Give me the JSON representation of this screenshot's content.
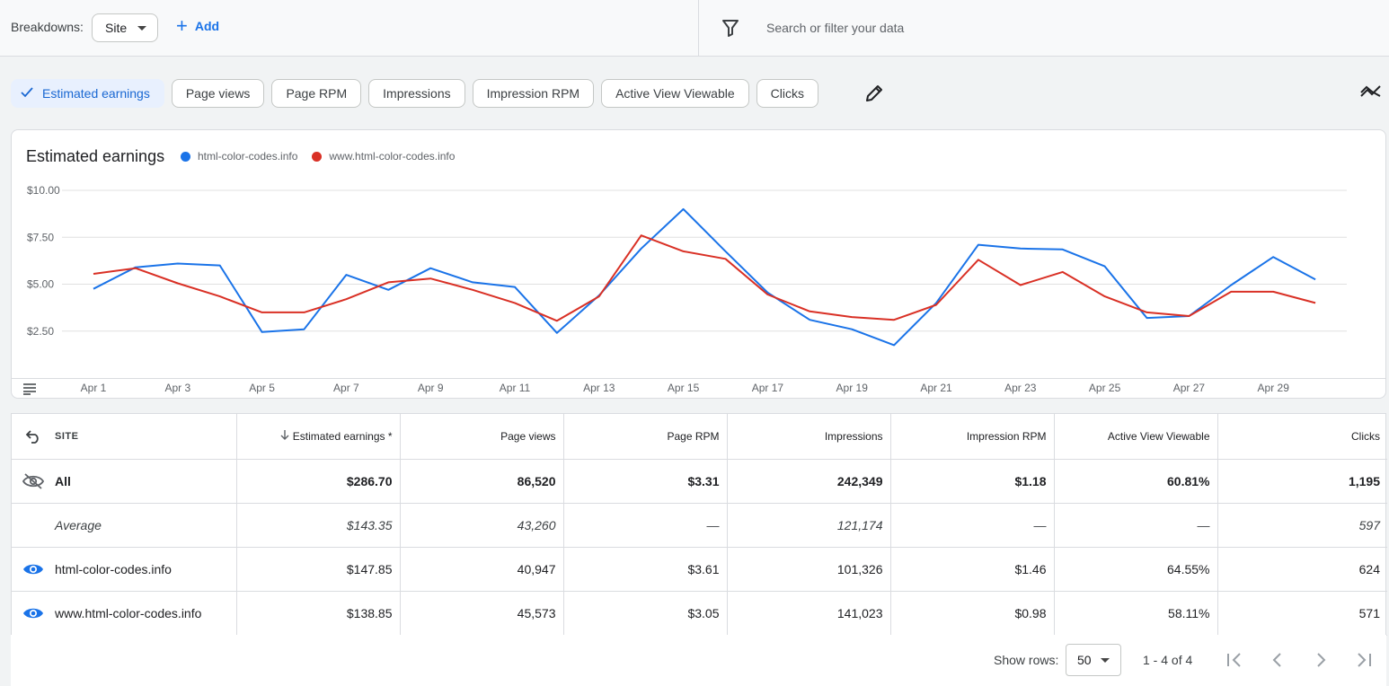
{
  "topbar": {
    "breakdowns_label": "Breakdowns:",
    "breakdown_value": "Site",
    "add_label": "Add",
    "search_placeholder": "Search or filter your data"
  },
  "metric_chips": [
    {
      "label": "Estimated earnings",
      "active": true
    },
    {
      "label": "Page views",
      "active": false
    },
    {
      "label": "Page RPM",
      "active": false
    },
    {
      "label": "Impressions",
      "active": false
    },
    {
      "label": "Impression RPM",
      "active": false
    },
    {
      "label": "Active View Viewable",
      "active": false
    },
    {
      "label": "Clicks",
      "active": false
    }
  ],
  "chart_data": {
    "type": "line",
    "title": "Estimated earnings",
    "x": [
      "Apr 1",
      "Apr 2",
      "Apr 3",
      "Apr 4",
      "Apr 5",
      "Apr 6",
      "Apr 7",
      "Apr 8",
      "Apr 9",
      "Apr 10",
      "Apr 11",
      "Apr 12",
      "Apr 13",
      "Apr 14",
      "Apr 15",
      "Apr 16",
      "Apr 17",
      "Apr 18",
      "Apr 19",
      "Apr 20",
      "Apr 21",
      "Apr 22",
      "Apr 23",
      "Apr 24",
      "Apr 25",
      "Apr 26",
      "Apr 27",
      "Apr 28",
      "Apr 29",
      "Apr 30"
    ],
    "tick_labels": [
      "Apr 1",
      "Apr 3",
      "Apr 5",
      "Apr 7",
      "Apr 9",
      "Apr 11",
      "Apr 13",
      "Apr 15",
      "Apr 17",
      "Apr 19",
      "Apr 21",
      "Apr 23",
      "Apr 25",
      "Apr 27",
      "Apr 29"
    ],
    "y_ticks": [
      "$2.50",
      "$5.00",
      "$7.50",
      "$10.00"
    ],
    "ylim": [
      0,
      10
    ],
    "grid": true,
    "legend_position": "top-left",
    "series": [
      {
        "name": "html-color-codes.info",
        "color": "#1a73e8",
        "values": [
          4.75,
          5.9,
          6.1,
          6.0,
          2.45,
          2.6,
          5.5,
          4.7,
          5.85,
          5.1,
          4.85,
          2.4,
          4.4,
          6.9,
          9.0,
          6.75,
          4.55,
          3.1,
          2.6,
          1.75,
          4.0,
          7.1,
          6.9,
          6.85,
          5.95,
          3.2,
          3.3,
          4.95,
          6.45,
          5.25
        ]
      },
      {
        "name": "www.html-color-codes.info",
        "color": "#d93025",
        "values": [
          5.55,
          5.85,
          5.05,
          4.35,
          3.5,
          3.5,
          4.2,
          5.1,
          5.3,
          4.7,
          4.0,
          3.05,
          4.35,
          7.6,
          6.75,
          6.35,
          4.45,
          3.55,
          3.25,
          3.1,
          3.9,
          6.3,
          4.95,
          5.65,
          4.35,
          3.5,
          3.3,
          4.6,
          4.6,
          4.0
        ]
      }
    ]
  },
  "table": {
    "headers": {
      "site": "SITE",
      "earnings": "Estimated earnings *",
      "page_views": "Page views",
      "page_rpm": "Page RPM",
      "impressions": "Impressions",
      "impression_rpm": "Impression RPM",
      "active_view": "Active View Viewable",
      "clicks": "Clicks"
    },
    "rows": [
      {
        "site": "All",
        "earnings": "$286.70",
        "page_views": "86,520",
        "page_rpm": "$3.31",
        "impressions": "242,349",
        "impression_rpm": "$1.18",
        "active_view": "60.81%",
        "clicks": "1,195"
      },
      {
        "site": "Average",
        "earnings": "$143.35",
        "page_views": "43,260",
        "page_rpm": "—",
        "impressions": "121,174",
        "impression_rpm": "—",
        "active_view": "—",
        "clicks": "597"
      },
      {
        "site": "html-color-codes.info",
        "earnings": "$147.85",
        "page_views": "40,947",
        "page_rpm": "$3.61",
        "impressions": "101,326",
        "impression_rpm": "$1.46",
        "active_view": "64.55%",
        "clicks": "624"
      },
      {
        "site": "www.html-color-codes.info",
        "earnings": "$138.85",
        "page_views": "45,573",
        "page_rpm": "$3.05",
        "impressions": "141,023",
        "impression_rpm": "$0.98",
        "active_view": "58.11%",
        "clicks": "571"
      }
    ]
  },
  "pagination": {
    "show_rows_label": "Show rows:",
    "rows_value": "50",
    "range": "1 - 4 of 4"
  },
  "colors": {
    "accent": "#1a73e8",
    "series_blue": "#1a73e8",
    "series_red": "#d93025"
  }
}
